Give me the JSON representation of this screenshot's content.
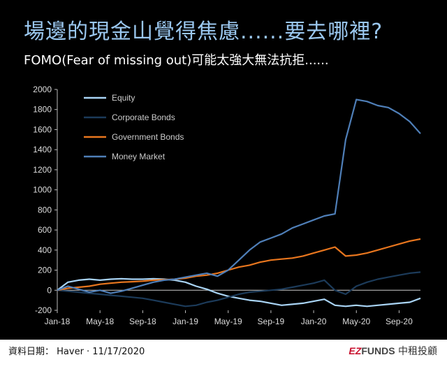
{
  "header": {
    "title": "場邊的現金山覺得焦慮......要去哪裡?",
    "subtitle": "FOMO(Fear of missing out)可能太強大無法抗拒......"
  },
  "footer": {
    "source": "資料日期： Haver · 11/17/2020",
    "logo_ez": "EZ",
    "logo_funds": "FUNDS",
    "logo_cn": "中租投顧"
  },
  "colors": {
    "equity": "#a9d4f5",
    "corporate_bonds": "#1c3b5a",
    "government_bonds": "#e8761e",
    "money_market": "#4f7fb8",
    "axis": "#bbbbbb",
    "zero_line": "#cccccc"
  },
  "chart_data": {
    "type": "line",
    "x": [
      "2018-01",
      "2018-02",
      "2018-03",
      "2018-04",
      "2018-05",
      "2018-06",
      "2018-07",
      "2018-08",
      "2018-09",
      "2018-10",
      "2018-11",
      "2018-12",
      "2019-01",
      "2019-02",
      "2019-03",
      "2019-04",
      "2019-05",
      "2019-06",
      "2019-07",
      "2019-08",
      "2019-09",
      "2019-10",
      "2019-11",
      "2019-12",
      "2020-01",
      "2020-02",
      "2020-03",
      "2020-04",
      "2020-05",
      "2020-06",
      "2020-07",
      "2020-08",
      "2020-09",
      "2020-10",
      "2020-11"
    ],
    "x_tick_labels": [
      "Jan-18",
      "May-18",
      "Sep-18",
      "Jan-19",
      "May-19",
      "Sep-19",
      "Jan-20",
      "May-20",
      "Sep-20"
    ],
    "x_tick_positions": [
      "2018-01",
      "2018-05",
      "2018-09",
      "2019-01",
      "2019-05",
      "2019-09",
      "2020-01",
      "2020-05",
      "2020-09"
    ],
    "ylim": [
      -200,
      2000
    ],
    "y_ticks": [
      -200,
      0,
      200,
      400,
      600,
      800,
      1000,
      1200,
      1400,
      1600,
      1800,
      2000
    ],
    "legend_position": "top-left",
    "grid": false,
    "series": [
      {
        "name": "Equity",
        "color_key": "equity",
        "values": [
          0,
          80,
          100,
          110,
          100,
          110,
          115,
          110,
          110,
          115,
          110,
          100,
          80,
          40,
          10,
          -30,
          -60,
          -80,
          -100,
          -110,
          -130,
          -150,
          -140,
          -130,
          -110,
          -90,
          -150,
          -160,
          -150,
          -160,
          -150,
          -140,
          -130,
          -120,
          -80
        ]
      },
      {
        "name": "Corporate Bonds",
        "color_key": "corporate_bonds",
        "values": [
          0,
          -10,
          -20,
          -30,
          -40,
          -50,
          -60,
          -70,
          -80,
          -100,
          -120,
          -140,
          -160,
          -150,
          -120,
          -100,
          -70,
          -40,
          -20,
          -10,
          0,
          10,
          30,
          50,
          70,
          100,
          0,
          -40,
          40,
          80,
          110,
          130,
          150,
          170,
          180
        ]
      },
      {
        "name": "Government Bonds",
        "color_key": "government_bonds",
        "values": [
          0,
          20,
          30,
          40,
          60,
          70,
          80,
          85,
          90,
          100,
          105,
          110,
          120,
          140,
          150,
          170,
          200,
          230,
          250,
          280,
          300,
          310,
          320,
          340,
          370,
          400,
          430,
          340,
          350,
          370,
          400,
          430,
          460,
          490,
          510
        ]
      },
      {
        "name": "Money Market",
        "color_key": "money_market",
        "values": [
          0,
          40,
          10,
          -20,
          0,
          -30,
          -10,
          20,
          50,
          80,
          100,
          110,
          130,
          150,
          170,
          140,
          200,
          300,
          400,
          480,
          520,
          560,
          620,
          660,
          700,
          740,
          760,
          1500,
          1900,
          1880,
          1840,
          1820,
          1760,
          1680,
          1560
        ]
      }
    ]
  }
}
